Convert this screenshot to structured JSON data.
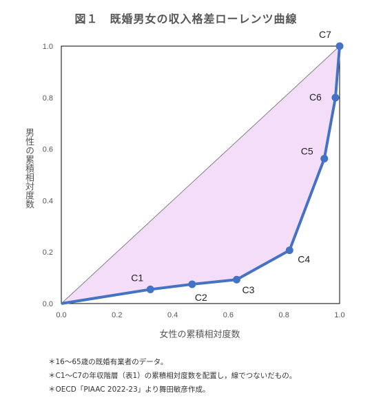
{
  "chart_data": {
    "type": "line",
    "title": "図１　既婚男女の収入格差ローレンツ曲線",
    "xlabel": "女性の累積相対度数",
    "ylabel": "男性の累積相対度数",
    "xlim": [
      0,
      1
    ],
    "ylim": [
      0,
      1
    ],
    "x_ticks": [
      "0.0",
      "0.2",
      "0.4",
      "0.6",
      "0.8",
      "1.0"
    ],
    "y_ticks": [
      "0.0",
      "0.2",
      "0.4",
      "0.6",
      "0.8",
      "1.0"
    ],
    "equality_line": [
      [
        0,
        0
      ],
      [
        1,
        1
      ]
    ],
    "series": [
      {
        "points": [
          {
            "label": "",
            "x": 0.0,
            "y": 0.0
          },
          {
            "label": "C1",
            "x": 0.32,
            "y": 0.055
          },
          {
            "label": "C2",
            "x": 0.47,
            "y": 0.075
          },
          {
            "label": "C3",
            "x": 0.63,
            "y": 0.093
          },
          {
            "label": "C4",
            "x": 0.82,
            "y": 0.207
          },
          {
            "label": "C5",
            "x": 0.945,
            "y": 0.563
          },
          {
            "label": "C6",
            "x": 0.985,
            "y": 0.8
          },
          {
            "label": "C7",
            "x": 1.0,
            "y": 1.0
          }
        ]
      }
    ],
    "colors": {
      "curve": "#4472C4",
      "fill": "#F4DDF9",
      "equality": "#808080",
      "frame": "#000000"
    }
  },
  "notes": [
    "＊16〜65歳の既婚有業者のデータ。",
    "＊C1〜C7の年収階層（表1）の累積相対度数を配置し，線でつないだもの。",
    "＊OECD「PIAAC 2022-23」より舞田敏彦作成。"
  ]
}
